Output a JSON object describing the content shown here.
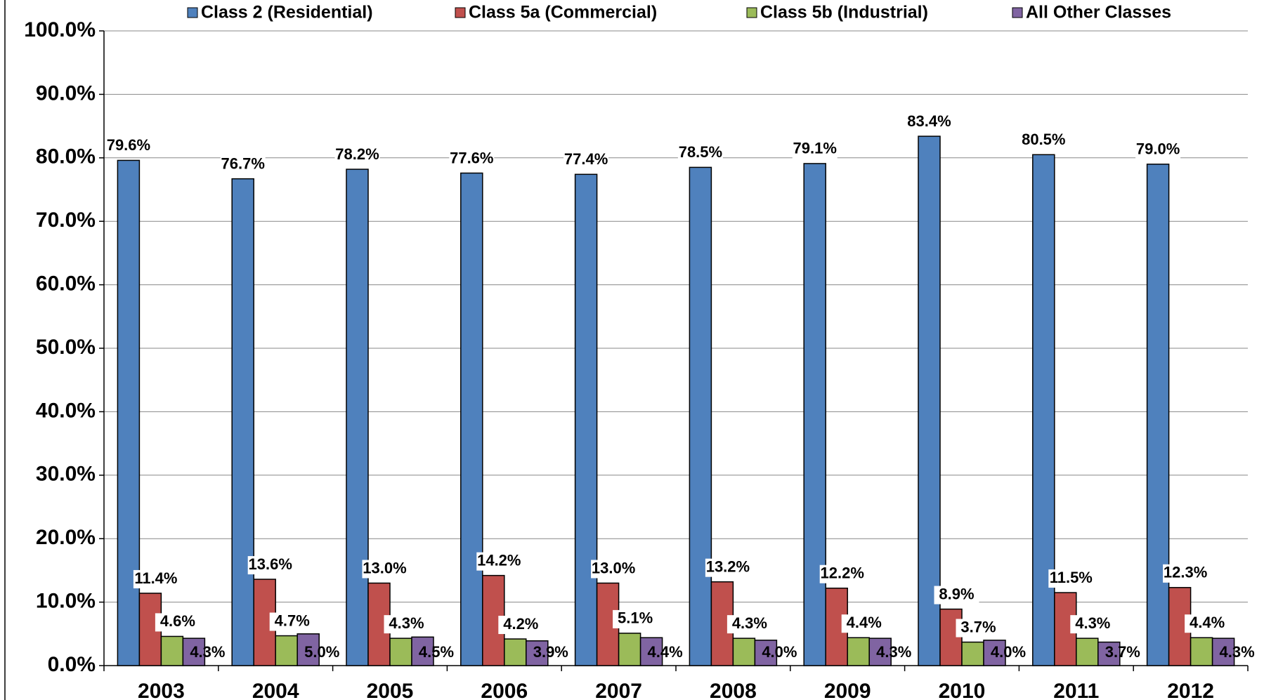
{
  "chart_data": {
    "type": "bar",
    "categories": [
      "2003",
      "2004",
      "2005",
      "2006",
      "2007",
      "2008",
      "2009",
      "2010",
      "2011",
      "2012"
    ],
    "series": [
      {
        "name": "Class 2 (Residential)",
        "color": "#4f81bd",
        "values": [
          79.6,
          76.7,
          78.2,
          77.6,
          77.4,
          78.5,
          79.1,
          83.4,
          80.5,
          79.0
        ],
        "value_labels": [
          "79.6%",
          "76.7%",
          "78.2%",
          "77.6%",
          "77.4%",
          "78.5%",
          "79.1%",
          "83.4%",
          "80.5%",
          "79.0%"
        ]
      },
      {
        "name": "Class 5a (Commercial)",
        "color": "#c0504d",
        "values": [
          11.4,
          13.6,
          13.0,
          14.2,
          13.0,
          13.2,
          12.2,
          8.9,
          11.5,
          12.3
        ],
        "value_labels": [
          "11.4%",
          "13.6%",
          "13.0%",
          "14.2%",
          "13.0%",
          "13.2%",
          "12.2%",
          "8.9%",
          "11.5%",
          "12.3%"
        ]
      },
      {
        "name": "Class 5b (Industrial)",
        "color": "#9bbb59",
        "values": [
          4.6,
          4.7,
          4.3,
          4.2,
          5.1,
          4.3,
          4.4,
          3.7,
          4.3,
          4.4
        ],
        "value_labels": [
          "4.6%",
          "4.7%",
          "4.3%",
          "4.2%",
          "5.1%",
          "4.3%",
          "4.4%",
          "3.7%",
          "4.3%",
          "4.4%"
        ]
      },
      {
        "name": "All Other Classes",
        "color": "#8064a2",
        "values": [
          4.3,
          5.0,
          4.5,
          3.9,
          4.4,
          4.0,
          4.3,
          4.0,
          3.7,
          4.3
        ],
        "value_labels": [
          "4.3%",
          "5.0%",
          "4.5%",
          "3.9%",
          "4.4%",
          "4.0%",
          "4.3%",
          "4.0%",
          "3.7%",
          "4.3%"
        ]
      }
    ],
    "ylim": [
      0,
      100
    ],
    "yticks": [
      {
        "value": 0,
        "label": "0.0%"
      },
      {
        "value": 10,
        "label": "10.0%"
      },
      {
        "value": 20,
        "label": "20.0%"
      },
      {
        "value": 30,
        "label": "30.0%"
      },
      {
        "value": 40,
        "label": "40.0%"
      },
      {
        "value": 50,
        "label": "50.0%"
      },
      {
        "value": 60,
        "label": "60.0%"
      },
      {
        "value": 70,
        "label": "70.0%"
      },
      {
        "value": 80,
        "label": "80.0%"
      },
      {
        "value": 90,
        "label": "90.0%"
      },
      {
        "value": 100,
        "label": "100.0%"
      }
    ],
    "grid": true,
    "legend": "top"
  }
}
